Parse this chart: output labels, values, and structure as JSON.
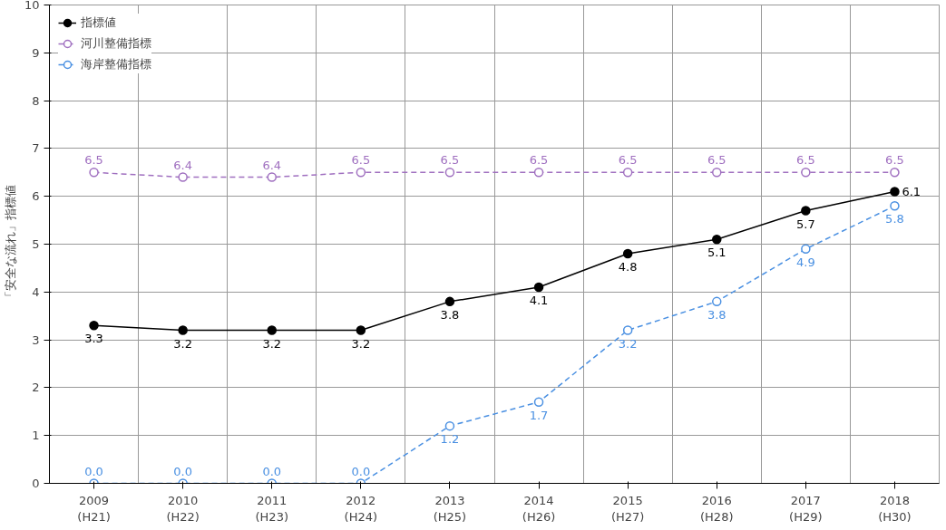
{
  "chart_data": {
    "type": "line",
    "ylabel": "「安全な流れ」指標値",
    "categories": [
      "2009\n(H21)",
      "2010\n(H22)",
      "2011\n(H23)",
      "2012\n(H24)",
      "2013\n(H25)",
      "2014\n(H26)",
      "2015\n(H27)",
      "2016\n(H28)",
      "2017\n(H29)",
      "2018\n(H30)"
    ],
    "series": [
      {
        "name": "指標値",
        "color": "#000000",
        "line_style": "solid",
        "values": [
          3.3,
          3.2,
          3.2,
          3.2,
          3.8,
          4.1,
          4.8,
          5.1,
          5.7,
          6.1
        ],
        "value_labels": [
          "3.3",
          "3.2",
          "3.2",
          "3.2",
          "3.8",
          "4.1",
          "4.8",
          "5.1",
          "5.7",
          "6.1"
        ]
      },
      {
        "name": "河川整備指標",
        "color": "#a070c0",
        "line_style": "dashed",
        "values": [
          6.5,
          6.4,
          6.4,
          6.5,
          6.5,
          6.5,
          6.5,
          6.5,
          6.5,
          6.5
        ],
        "value_labels": [
          "6.5",
          "6.4",
          "6.4",
          "6.5",
          "6.5",
          "6.5",
          "6.5",
          "6.5",
          "6.5",
          "6.5"
        ]
      },
      {
        "name": "海岸整備指標",
        "color": "#4a90e2",
        "line_style": "dashed",
        "values": [
          0.0,
          0.0,
          0.0,
          0.0,
          1.2,
          1.7,
          3.2,
          3.8,
          4.9,
          5.8
        ],
        "value_labels": [
          "0.0",
          "0.0",
          "0.0",
          "0.0",
          "1.2",
          "1.7",
          "3.2",
          "3.8",
          "4.9",
          "5.8"
        ]
      }
    ],
    "ylim": [
      0,
      10
    ],
    "yticks": [
      0,
      1,
      2,
      3,
      4,
      5,
      6,
      7,
      8,
      9,
      10
    ],
    "grid": true,
    "legend": "top left",
    "marker": "circle"
  }
}
